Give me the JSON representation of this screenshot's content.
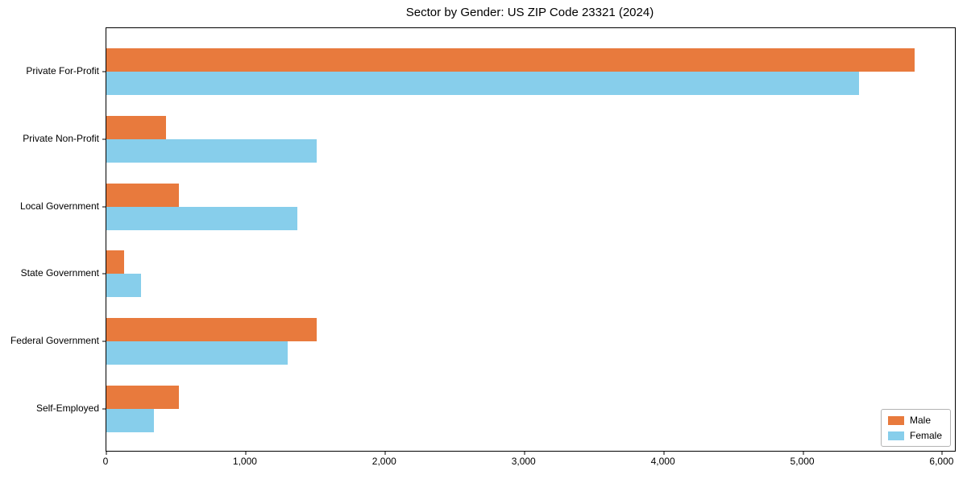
{
  "chart_data": {
    "type": "bar",
    "orientation": "horizontal",
    "title": "Sector by Gender: US ZIP Code 23321 (2024)",
    "categories": [
      "Private For-Profit",
      "Private Non-Profit",
      "Local Government",
      "State Government",
      "Federal Government",
      "Self-Employed"
    ],
    "series": [
      {
        "name": "Male",
        "color": "#e87a3d",
        "values": [
          5800,
          430,
          520,
          130,
          1510,
          520
        ]
      },
      {
        "name": "Female",
        "color": "#87ceeb",
        "values": [
          5400,
          1510,
          1370,
          250,
          1300,
          340
        ]
      }
    ],
    "xlabel": "",
    "ylabel": "",
    "xlim": [
      0,
      6090
    ],
    "xticks": [
      0,
      1000,
      2000,
      3000,
      4000,
      5000,
      6000
    ],
    "xtick_labels": [
      "0",
      "1,000",
      "2,000",
      "3,000",
      "4,000",
      "5,000",
      "6,000"
    ],
    "grid": false,
    "legend": {
      "position": "lower right"
    },
    "colors": {
      "axis": "#000000",
      "background": "#ffffff"
    }
  }
}
